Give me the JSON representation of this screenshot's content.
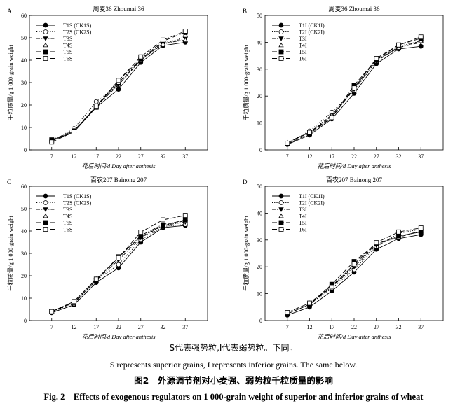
{
  "captions": {
    "note_zh": "S代表强势粒,I代表弱势粒。下同。",
    "note_en": "S represents superior grains, I represents inferior grains. The same below.",
    "title_zh": "图2　外源调节剂对小麦强、弱势粒千粒质量的影响",
    "title_en": "Fig. 2　Effects of exogenous regulators on 1 000-grain weight of superior and inferior grains of wheat"
  },
  "chart_data": [
    {
      "type": "line",
      "panel": "A",
      "title": "周麦36 Zhoumai 36",
      "xlabel": "花后时间/d Day after anthesis",
      "ylabel": "千粒质量/g 1 000-grain weight",
      "x": [
        7,
        12,
        17,
        22,
        27,
        32,
        37
      ],
      "xlim": [
        2,
        42
      ],
      "ylim": [
        0,
        60
      ],
      "yticks": [
        0,
        10,
        20,
        30,
        40,
        50,
        60
      ],
      "legend_position": "top-left",
      "grid": false,
      "series": [
        {
          "name": "T1S (CK1S)",
          "marker": "circle-filled",
          "dash": "solid",
          "values": [
            4.2,
            8.0,
            19.0,
            27.0,
            39.0,
            46.5,
            48.0
          ]
        },
        {
          "name": "T2S (CK2S)",
          "marker": "circle-open",
          "dash": "dotted",
          "values": [
            3.8,
            9.5,
            21.5,
            29.0,
            40.5,
            47.0,
            50.5
          ]
        },
        {
          "name": "T3S",
          "marker": "triangle-down-filled",
          "dash": "dashdot",
          "values": [
            4.0,
            8.0,
            19.5,
            29.0,
            40.0,
            48.0,
            49.5
          ]
        },
        {
          "name": "T4S",
          "marker": "triangle-up-open",
          "dash": "dashdotdot",
          "values": [
            4.0,
            8.5,
            19.5,
            30.0,
            40.0,
            47.5,
            49.0
          ]
        },
        {
          "name": "T5S",
          "marker": "square-filled",
          "dash": "longdash",
          "values": [
            4.5,
            8.5,
            19.0,
            31.0,
            40.5,
            48.5,
            52.5
          ]
        },
        {
          "name": "T6S",
          "marker": "square-open",
          "dash": "longdash",
          "values": [
            3.5,
            8.0,
            19.5,
            31.0,
            41.5,
            49.0,
            53.0
          ]
        }
      ]
    },
    {
      "type": "line",
      "panel": "B",
      "title": "周麦36 Zhoumai 36",
      "xlabel": "花后时间/d Day after anthesis",
      "ylabel": "千粒质量/g 1 000-grain weight",
      "x": [
        7,
        12,
        17,
        22,
        27,
        32,
        37
      ],
      "xlim": [
        2,
        42
      ],
      "ylim": [
        0,
        50
      ],
      "yticks": [
        0,
        10,
        20,
        30,
        40,
        50
      ],
      "legend_position": "top-left",
      "grid": false,
      "series": [
        {
          "name": "T1I (CK1I)",
          "marker": "circle-filled",
          "dash": "solid",
          "values": [
            2.0,
            5.5,
            11.5,
            21.0,
            32.0,
            37.5,
            38.5
          ]
        },
        {
          "name": "T2I (CK2I)",
          "marker": "circle-open",
          "dash": "dotted",
          "values": [
            2.5,
            7.0,
            14.0,
            22.0,
            33.0,
            38.5,
            40.5
          ]
        },
        {
          "name": "T3I",
          "marker": "triangle-down-filled",
          "dash": "dashdot",
          "values": [
            2.5,
            6.5,
            12.5,
            22.5,
            33.0,
            38.0,
            40.0
          ]
        },
        {
          "name": "T4I",
          "marker": "triangle-up-open",
          "dash": "dashdotdot",
          "values": [
            2.8,
            6.5,
            13.0,
            23.0,
            33.5,
            38.0,
            40.5
          ]
        },
        {
          "name": "T5I",
          "marker": "square-filled",
          "dash": "longdash",
          "values": [
            2.2,
            6.0,
            12.0,
            24.0,
            33.5,
            39.0,
            41.5
          ]
        },
        {
          "name": "T6I",
          "marker": "square-open",
          "dash": "longdash",
          "values": [
            2.5,
            6.5,
            12.0,
            23.0,
            34.0,
            39.0,
            42.0
          ]
        }
      ]
    },
    {
      "type": "line",
      "panel": "C",
      "title": "百农207 Bainong 207",
      "xlabel": "花后时间/d Day after anthesis",
      "ylabel": "千粒质量/g 1 000-grain weight",
      "x": [
        7,
        12,
        17,
        22,
        27,
        32,
        37
      ],
      "xlim": [
        2,
        42
      ],
      "ylim": [
        0,
        60
      ],
      "yticks": [
        0,
        10,
        20,
        30,
        40,
        50,
        60
      ],
      "legend_position": "top-left",
      "grid": false,
      "series": [
        {
          "name": "T1S (CK1S)",
          "marker": "circle-filled",
          "dash": "solid",
          "values": [
            3.5,
            7.0,
            17.0,
            23.5,
            35.0,
            41.5,
            42.5
          ]
        },
        {
          "name": "T2S (CK2S)",
          "marker": "circle-open",
          "dash": "dotted",
          "values": [
            4.0,
            7.5,
            18.0,
            25.0,
            36.0,
            42.0,
            43.0
          ]
        },
        {
          "name": "T3S",
          "marker": "triangle-down-filled",
          "dash": "dashdot",
          "values": [
            4.0,
            8.0,
            18.0,
            27.0,
            37.0,
            42.5,
            44.0
          ]
        },
        {
          "name": "T4S",
          "marker": "triangle-up-open",
          "dash": "dashdotdot",
          "values": [
            4.0,
            8.5,
            18.5,
            28.0,
            38.0,
            43.0,
            44.5
          ]
        },
        {
          "name": "T5S",
          "marker": "square-filled",
          "dash": "longdash",
          "values": [
            4.0,
            8.0,
            18.0,
            28.5,
            37.5,
            42.5,
            45.0
          ]
        },
        {
          "name": "T6S",
          "marker": "square-open",
          "dash": "longdash",
          "values": [
            4.0,
            8.5,
            18.5,
            28.0,
            39.5,
            45.0,
            47.0
          ]
        }
      ]
    },
    {
      "type": "line",
      "panel": "D",
      "title": "百农207 Bainong 207",
      "xlabel": "花后时间/d Day after anthesis",
      "ylabel": "千粒质量/g 1 000-grain weight",
      "x": [
        7,
        12,
        17,
        22,
        27,
        32,
        37
      ],
      "xlim": [
        2,
        42
      ],
      "ylim": [
        0,
        50
      ],
      "yticks": [
        0,
        10,
        20,
        30,
        40,
        50
      ],
      "legend_position": "top-left",
      "grid": false,
      "series": [
        {
          "name": "T1I (CK1I)",
          "marker": "circle-filled",
          "dash": "solid",
          "values": [
            2.0,
            5.0,
            11.0,
            18.0,
            26.5,
            30.5,
            32.0
          ]
        },
        {
          "name": "T2I (CK2I)",
          "marker": "circle-open",
          "dash": "dotted",
          "values": [
            2.5,
            6.0,
            12.0,
            19.0,
            27.5,
            32.5,
            34.0
          ]
        },
        {
          "name": "T3I",
          "marker": "triangle-down-filled",
          "dash": "dashdot",
          "values": [
            2.5,
            6.0,
            12.5,
            20.0,
            28.0,
            31.5,
            33.0
          ]
        },
        {
          "name": "T4I",
          "marker": "triangle-up-open",
          "dash": "dashdotdot",
          "values": [
            3.0,
            6.5,
            13.0,
            20.5,
            28.5,
            31.0,
            33.5
          ]
        },
        {
          "name": "T5I",
          "marker": "square-filled",
          "dash": "longdash",
          "values": [
            2.5,
            6.0,
            13.5,
            22.0,
            28.5,
            31.5,
            33.0
          ]
        },
        {
          "name": "T6I",
          "marker": "square-open",
          "dash": "longdash",
          "values": [
            3.0,
            6.5,
            12.5,
            21.0,
            29.0,
            33.0,
            34.5
          ]
        }
      ]
    }
  ]
}
